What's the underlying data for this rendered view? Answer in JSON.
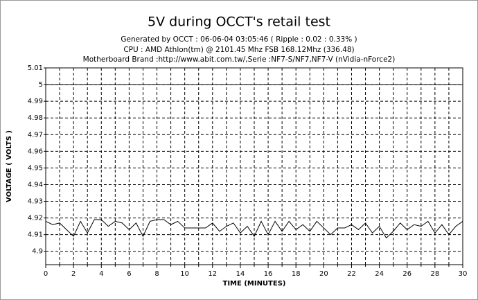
{
  "chart_data": {
    "type": "line",
    "title": "5V during OCCT's retail test",
    "subtitle": [
      "Generated by OCCT : 06-06-04 03:05:46 ( Ripple : 0.02 : 0.33% )",
      "CPU : AMD Athlon(tm)  @ 2101.45 Mhz FSB 168.12Mhz (336.48)",
      "Motherboard Brand :http://www.abit.com.tw/,Serie :NF7-S/NF7,NF7-V (nVidia-nForce2)"
    ],
    "x_label": "TIME (MINUTES)",
    "y_label": "VOLTAGE ( VOLTS )",
    "x": [
      0,
      0.5,
      1,
      1.5,
      2,
      2.5,
      3,
      3.5,
      4,
      4.5,
      5,
      5.5,
      6,
      6.5,
      7,
      7.5,
      8,
      8.5,
      9,
      9.5,
      10,
      10.5,
      11,
      11.5,
      12,
      12.5,
      13,
      13.5,
      14,
      14.5,
      15,
      15.5,
      16,
      16.5,
      17,
      17.5,
      18,
      18.5,
      19,
      19.5,
      20,
      20.5,
      21,
      21.5,
      22,
      22.5,
      23,
      23.5,
      24,
      24.5,
      25,
      25.5,
      26,
      26.5,
      27,
      27.5,
      28,
      28.5,
      29,
      29.5,
      30
    ],
    "values": [
      4.918,
      4.916,
      4.917,
      4.913,
      4.909,
      4.918,
      4.911,
      4.919,
      4.919,
      4.915,
      4.918,
      4.917,
      4.913,
      4.917,
      4.909,
      4.918,
      4.919,
      4.919,
      4.916,
      4.918,
      4.914,
      4.914,
      4.914,
      4.914,
      4.917,
      4.912,
      4.915,
      4.917,
      4.911,
      4.915,
      4.909,
      4.918,
      4.91,
      4.918,
      4.912,
      4.918,
      4.913,
      4.916,
      4.912,
      4.918,
      4.914,
      4.91,
      4.914,
      4.914,
      4.916,
      4.913,
      4.917,
      4.911,
      4.915,
      4.908,
      4.912,
      4.917,
      4.913,
      4.916,
      4.915,
      4.918,
      4.911,
      4.916,
      4.91,
      4.915,
      4.918
    ],
    "color": "#000000",
    "xlim": [
      0,
      30
    ],
    "xticks": [
      0,
      2,
      4,
      6,
      8,
      10,
      12,
      14,
      16,
      18,
      20,
      22,
      24,
      26,
      28,
      30
    ],
    "xminor": [
      1,
      3,
      5,
      7,
      9,
      11,
      13,
      15,
      17,
      19,
      21,
      23,
      25,
      27,
      29
    ],
    "ylim": [
      4.892,
      5.01
    ],
    "yticks": [
      5.01,
      5,
      4.99,
      4.98,
      4.97,
      4.96,
      4.95,
      4.94,
      4.93,
      4.92,
      4.91,
      4.9
    ],
    "reference_line": 5,
    "grid": true
  }
}
